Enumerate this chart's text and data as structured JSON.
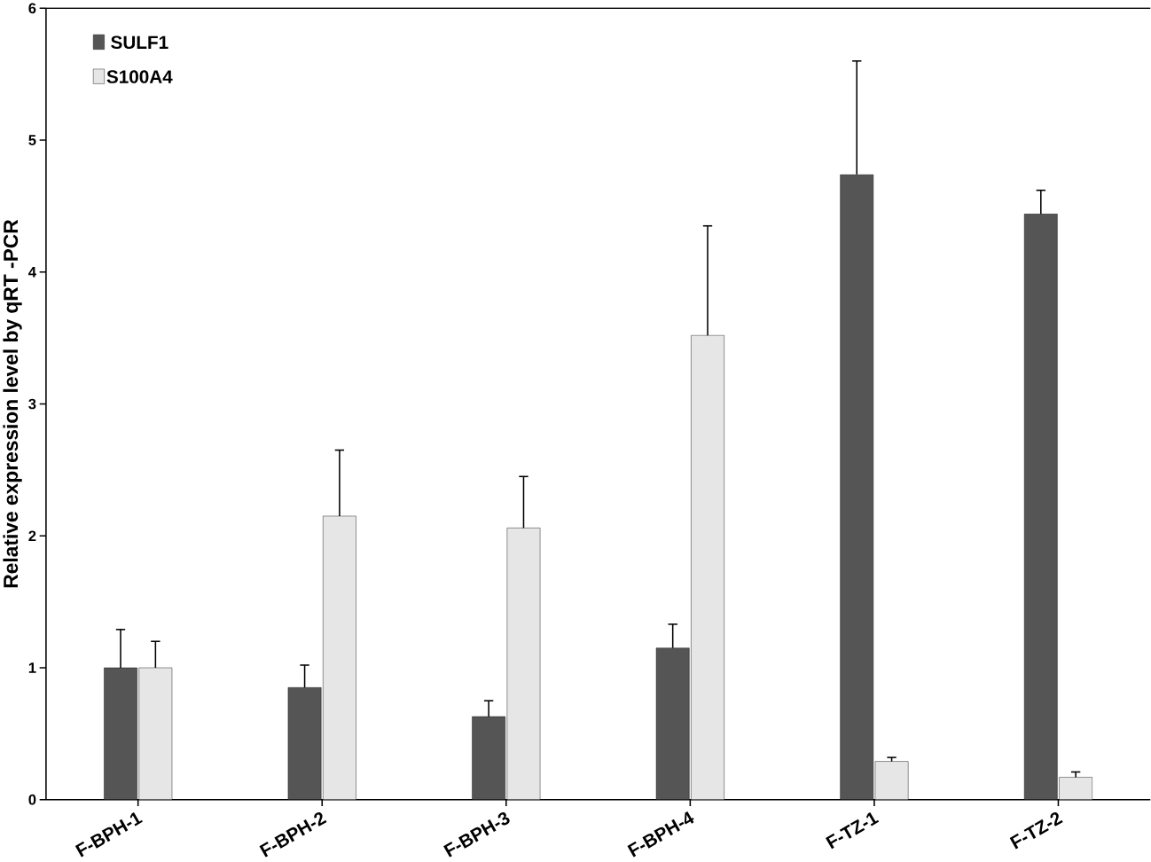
{
  "chart_data": {
    "type": "bar",
    "ylabel": "Relative expression level by qRT -PCR",
    "categories": [
      "F-BPH-1",
      "F-BPH-2",
      "F-BPH-3",
      "F-BPH-4",
      "F-TZ-1",
      "F-TZ-2"
    ],
    "series": [
      {
        "name": "SULF1",
        "color": "#555555",
        "values": [
          1.0,
          0.85,
          0.63,
          1.15,
          4.74,
          4.44
        ],
        "errors": [
          0.29,
          0.17,
          0.12,
          0.18,
          0.86,
          0.18
        ]
      },
      {
        "name": "S100A4",
        "color": "#e6e6e6",
        "values": [
          1.0,
          2.15,
          2.06,
          3.52,
          0.29,
          0.17
        ],
        "errors": [
          0.2,
          0.5,
          0.39,
          0.83,
          0.03,
          0.04
        ]
      }
    ],
    "ylim": [
      0,
      6
    ],
    "yticks": [
      0,
      1,
      2,
      3,
      4,
      5,
      6
    ],
    "legend": "top left"
  }
}
